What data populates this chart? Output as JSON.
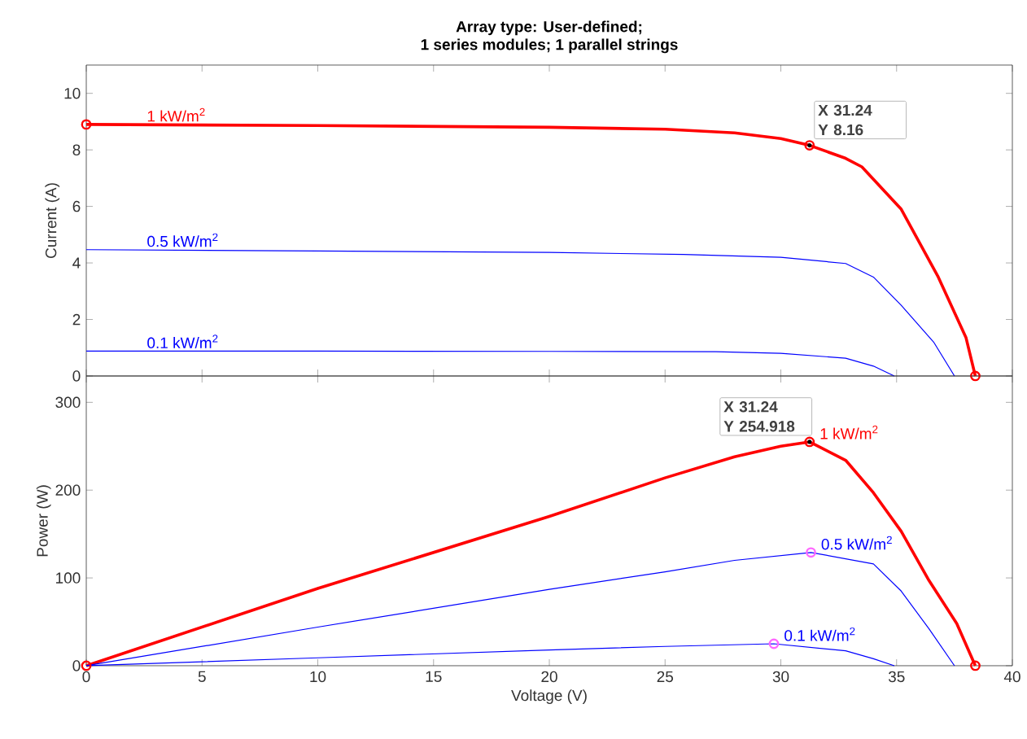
{
  "chart_data": [
    {
      "type": "line",
      "title": "Array type: User-defined;",
      "subtitle": "1 series modules; 1 parallel strings",
      "ylabel": "Current (A)",
      "xlim": [
        0,
        40
      ],
      "xticks": [
        0,
        5,
        10,
        15,
        20,
        25,
        30,
        35,
        40
      ],
      "ylim": [
        0,
        11
      ],
      "yticks": [
        0,
        2,
        4,
        6,
        8,
        10
      ],
      "tick_labels": "y",
      "annotations": [
        "X 31.24",
        "Y 8.16"
      ],
      "series": [
        {
          "name": "1 kW/m$^{2}$",
          "color": "#ff0000",
          "x": [
            0,
            10,
            20,
            25,
            28,
            30,
            31.24,
            32.8,
            33.5,
            35.2,
            36.8,
            38.0,
            38.4
          ],
          "values": [
            8.9,
            8.86,
            8.8,
            8.73,
            8.6,
            8.4,
            8.16,
            7.7,
            7.4,
            5.9,
            3.5,
            1.35,
            0
          ]
        },
        {
          "name": "0.5 kW/m$^{2}$",
          "color": "#0000ff",
          "x": [
            0,
            10,
            20,
            25.8,
            30,
            32.8,
            34.0,
            35.2,
            36.6,
            37.5
          ],
          "values": [
            4.47,
            4.42,
            4.37,
            4.3,
            4.2,
            3.98,
            3.5,
            2.5,
            1.2,
            0
          ]
        },
        {
          "name": "0.1 kW/m$^{2}$",
          "color": "#0000ff",
          "x": [
            0,
            10,
            20,
            27.2,
            30,
            32.8,
            34.0,
            34.9
          ],
          "values": [
            0.88,
            0.88,
            0.87,
            0.86,
            0.8,
            0.63,
            0.35,
            0
          ]
        },
        {
          "type": "scatter",
          "marker": "circle",
          "color": "#ff0000",
          "x": [
            0,
            31.24,
            38.4
          ],
          "values": [
            8.9,
            8.16,
            0
          ]
        }
      ]
    },
    {
      "type": "line",
      "xlabel": "Voltage (V)",
      "ylabel": "Power (W)",
      "xlim": [
        0,
        40
      ],
      "xticks": [
        0,
        5,
        10,
        15,
        20,
        25,
        30,
        35,
        40
      ],
      "ylim": [
        0,
        330
      ],
      "yticks": [
        0,
        100,
        200,
        300
      ],
      "annotations": [
        "X 31.24",
        "Y 254.918"
      ],
      "series": [
        {
          "name": "1 kW/m$^{2}$",
          "color": "#ff0000",
          "x": [
            0,
            10,
            20,
            25,
            28,
            30,
            31.24,
            32.8,
            34.0,
            35.2,
            36.4,
            37.6,
            38.4
          ],
          "values": [
            0,
            88,
            170,
            214,
            238,
            250,
            254.918,
            234,
            197,
            153,
            97,
            48,
            0
          ]
        },
        {
          "name": "0.5 kW/m$^{2}$",
          "color": "#0000ff",
          "x": [
            0,
            10,
            20,
            25,
            28,
            31.3,
            34.0,
            35.2,
            36.4,
            37.5
          ],
          "values": [
            0,
            44,
            87,
            107,
            120,
            129,
            116,
            85,
            42,
            0
          ]
        },
        {
          "name": "0.1 kW/m$^{2}$",
          "color": "#0000ff",
          "x": [
            0,
            10,
            20,
            25,
            29.7,
            32.8,
            34.0,
            34.9
          ],
          "values": [
            0,
            9,
            18,
            22,
            25,
            17,
            8,
            0
          ]
        },
        {
          "type": "scatter",
          "marker": "circle",
          "color": "#ff0000",
          "x": [
            0,
            31.24,
            38.4
          ],
          "values": [
            0,
            254.918,
            0
          ]
        },
        {
          "type": "scatter",
          "marker": "circle",
          "color": "#ff66ff",
          "x": [
            31.3,
            29.7
          ],
          "values": [
            129,
            25
          ]
        }
      ]
    }
  ]
}
